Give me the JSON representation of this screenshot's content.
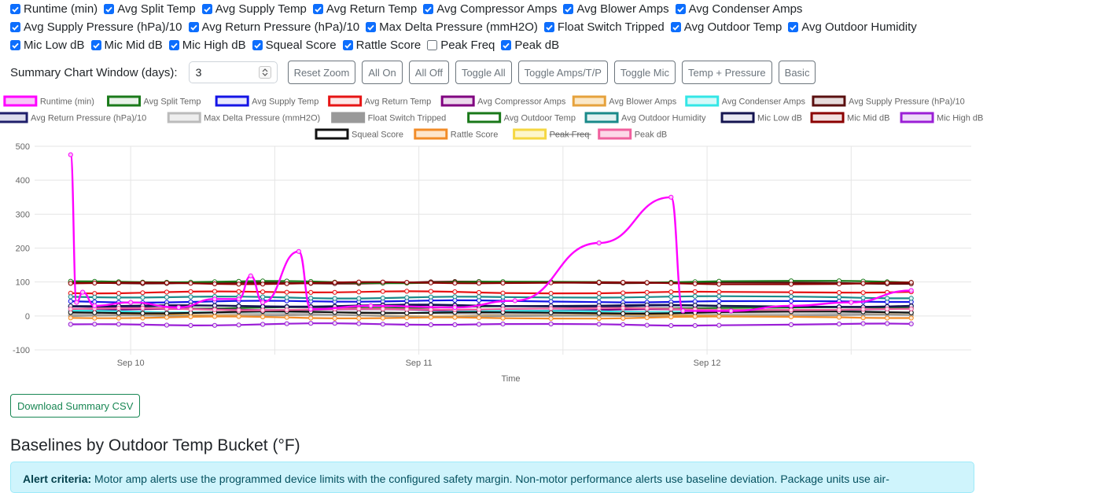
{
  "checkbox_rows": [
    [
      {
        "label": "Runtime (min)",
        "checked": true
      },
      {
        "label": "Avg Split Temp",
        "checked": true
      },
      {
        "label": "Avg Supply Temp",
        "checked": true
      },
      {
        "label": "Avg Return Temp",
        "checked": true
      },
      {
        "label": "Avg Compressor Amps",
        "checked": true
      },
      {
        "label": "Avg Blower Amps",
        "checked": true
      },
      {
        "label": "Avg Condenser Amps",
        "checked": true
      }
    ],
    [
      {
        "label": "Avg Supply Pressure (hPa)/10",
        "checked": true
      },
      {
        "label": "Avg Return Pressure (hPa)/10",
        "checked": true
      },
      {
        "label": "Max Delta Pressure (mmH2O)",
        "checked": true
      },
      {
        "label": "Float Switch Tripped",
        "checked": true
      },
      {
        "label": "Avg Outdoor Temp",
        "checked": true
      },
      {
        "label": "Avg Outdoor Humidity",
        "checked": true
      }
    ],
    [
      {
        "label": "Mic Low dB",
        "checked": true
      },
      {
        "label": "Mic Mid dB",
        "checked": true
      },
      {
        "label": "Mic High dB",
        "checked": true
      },
      {
        "label": "Squeal Score",
        "checked": true
      },
      {
        "label": "Rattle Score",
        "checked": true
      },
      {
        "label": "Peak Freq",
        "checked": false
      },
      {
        "label": "Peak dB",
        "checked": true
      }
    ]
  ],
  "controls": {
    "window_label": "Summary Chart Window (days):",
    "window_value": "3",
    "buttons": [
      "Reset Zoom",
      "All On",
      "All Off",
      "Toggle All",
      "Toggle Amps/T/P",
      "Toggle Mic",
      "Temp + Pressure",
      "Basic"
    ]
  },
  "chart_data": {
    "type": "line",
    "xlabel": "Time",
    "ylabel": "",
    "ylim": [
      -100,
      500
    ],
    "yticks": [
      -100,
      0,
      100,
      200,
      300,
      400,
      500
    ],
    "x_range": [
      "2024-09-09T16:00",
      "2024-09-12T22:00"
    ],
    "xticks": [
      {
        "x": "2024-09-10T00:00",
        "label": "Sep 10"
      },
      {
        "x": "2024-09-11T00:00",
        "label": "Sep 11"
      },
      {
        "x": "2024-09-12T00:00",
        "label": "Sep 12"
      }
    ],
    "grid": true,
    "legend_position": "top",
    "series": [
      {
        "name": "Runtime (min)",
        "color": "#ff00ff",
        "fill": "#f7c6f7",
        "hidden": false,
        "spiky": true,
        "points": [
          [
            "2024-09-09T19:00",
            475
          ],
          [
            "2024-09-09T19:30",
            40
          ],
          [
            "2024-09-09T20:00",
            70
          ],
          [
            "2024-09-09T21:00",
            30
          ],
          [
            "2024-09-10T00:00",
            40
          ],
          [
            "2024-09-10T04:00",
            25
          ],
          [
            "2024-09-10T07:00",
            50
          ],
          [
            "2024-09-10T09:00",
            50
          ],
          [
            "2024-09-10T10:00",
            118
          ],
          [
            "2024-09-10T11:00",
            40
          ],
          [
            "2024-09-10T14:00",
            190
          ],
          [
            "2024-09-10T15:00",
            20
          ],
          [
            "2024-09-10T20:00",
            30
          ],
          [
            "2024-09-11T03:00",
            25
          ],
          [
            "2024-09-11T08:00",
            45
          ],
          [
            "2024-09-11T15:00",
            215
          ],
          [
            "2024-09-11T21:00",
            350
          ],
          [
            "2024-09-11T22:00",
            15
          ],
          [
            "2024-09-12T02:00",
            15
          ],
          [
            "2024-09-12T07:00",
            30
          ],
          [
            "2024-09-12T12:00",
            40
          ],
          [
            "2024-09-12T17:00",
            75
          ]
        ]
      },
      {
        "name": "Avg Split Temp",
        "color": "#1a7a1a",
        "fill": "#e9f2e9",
        "hidden": false,
        "level": 25
      },
      {
        "name": "Avg Supply Temp",
        "color": "#1414e6",
        "fill": "#e8e8fc",
        "hidden": false,
        "level": 43
      },
      {
        "name": "Avg Return Temp",
        "color": "#e61414",
        "fill": "#fde8e8",
        "hidden": false,
        "level": 70
      },
      {
        "name": "Avg Compressor Amps",
        "color": "#800080",
        "fill": "#ecd9ec",
        "hidden": false,
        "level": 18
      },
      {
        "name": "Avg Blower Amps",
        "color": "#e6a23c",
        "fill": "#fbe8c8",
        "hidden": false,
        "level": 2
      },
      {
        "name": "Avg Condenser Amps",
        "color": "#33e6e6",
        "fill": "#d6f9f9",
        "hidden": false,
        "level": 12
      },
      {
        "name": "Avg Supply Pressure (hPa)/10",
        "color": "#5a0f0f",
        "fill": "#e6dcdc",
        "hidden": false,
        "level": 98
      },
      {
        "name": "Avg Return Pressure (hPa)/10",
        "color": "#1f1f6b",
        "fill": "#dcdcec",
        "hidden": false,
        "level": 30
      },
      {
        "name": "Max Delta Pressure (mmH2O)",
        "color": "#bbbbbb",
        "fill": "#eeeeee",
        "hidden": false,
        "level": 8
      },
      {
        "name": "Float Switch Tripped",
        "color": "#999999",
        "fill": "#999999",
        "hidden": false,
        "level": 0
      },
      {
        "name": "Avg Outdoor Temp",
        "color": "#197819",
        "fill": "#ffffff",
        "hidden": false,
        "level": 100
      },
      {
        "name": "Avg Outdoor Humidity",
        "color": "#1a8a8a",
        "fill": "#e2f2f2",
        "hidden": false,
        "level": 55
      },
      {
        "name": "Mic Low dB",
        "color": "#141450",
        "fill": "#e8e8f2",
        "hidden": false,
        "level": 30
      },
      {
        "name": "Mic Mid dB",
        "color": "#8b0000",
        "fill": "#f2e0e0",
        "hidden": false,
        "level": 97
      },
      {
        "name": "Mic High dB",
        "color": "#9b1fd6",
        "fill": "#eedcf8",
        "hidden": false,
        "level": -25
      },
      {
        "name": "Squeal Score",
        "color": "#111111",
        "fill": "#ffffff",
        "hidden": false,
        "level": 10
      },
      {
        "name": "Rattle Score",
        "color": "#f28c28",
        "fill": "#fde6cc",
        "hidden": false,
        "level": -5
      },
      {
        "name": "Peak Freq",
        "color": "#f5d742",
        "fill": "#fdf6cc",
        "hidden": true,
        "level": 0
      },
      {
        "name": "Peak dB",
        "color": "#f0609e",
        "fill": "#fcd8e8",
        "hidden": false,
        "level": 20
      }
    ]
  },
  "download_label": "Download Summary CSV",
  "section_title": "Baselines by Outdoor Temp Bucket (°F)",
  "alert": {
    "label": "Alert criteria:",
    "text": "Motor amp alerts use the programmed device limits with the configured safety margin. Non-motor performance alerts use baseline deviation. Package units use air-"
  }
}
